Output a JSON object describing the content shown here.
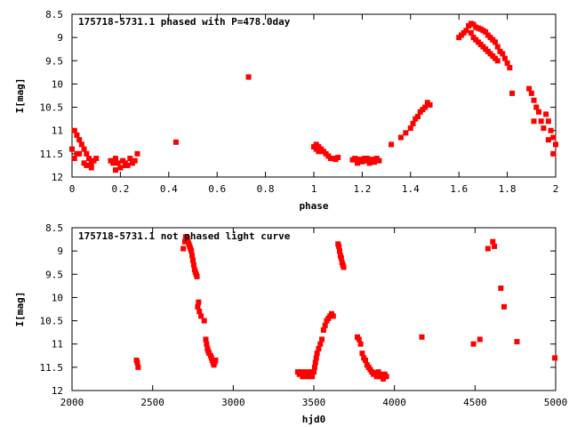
{
  "chart_data": [
    {
      "type": "scatter",
      "title": "175718-5731.1 phased with P=478.0day",
      "xlabel": "phase",
      "ylabel": "I[mag]",
      "xlim": [
        0,
        2
      ],
      "ylim": [
        8.5,
        12
      ],
      "y_inverted": true,
      "xticks": [
        "0",
        "0.2",
        "0.4",
        "0.6",
        "0.8",
        "1",
        "1.2",
        "1.4",
        "1.6",
        "1.8",
        "2"
      ],
      "yticks": [
        "8.5",
        "9",
        "9.5",
        "10",
        "10.5",
        "11",
        "11.5",
        "12"
      ],
      "color": "#ff0000",
      "series": [
        {
          "x": [
            0.0,
            0.01,
            0.01,
            0.02,
            0.02,
            0.03,
            0.04,
            0.05,
            0.06,
            0.07,
            0.08,
            0.09,
            0.1,
            0.03,
            0.05,
            0.06,
            0.08,
            0.16,
            0.17,
            0.18,
            0.19,
            0.2,
            0.21,
            0.22,
            0.23,
            0.24,
            0.25,
            0.26,
            0.27,
            0.18,
            0.22,
            0.43,
            0.73,
            1.0,
            1.01,
            1.01,
            1.02,
            1.02,
            1.03,
            1.04,
            1.05,
            1.06,
            1.07,
            1.08,
            1.09,
            1.1,
            1.16,
            1.17,
            1.18,
            1.19,
            1.2,
            1.21,
            1.22,
            1.23,
            1.24,
            1.25,
            1.26,
            1.27,
            1.18,
            1.22,
            1.32,
            1.36,
            1.38,
            1.4,
            1.41,
            1.42,
            1.43,
            1.44,
            1.45,
            1.46,
            1.47,
            1.48,
            1.6,
            1.61,
            1.62,
            1.63,
            1.64,
            1.65,
            1.66,
            1.67,
            1.68,
            1.69,
            1.7,
            1.71,
            1.72,
            1.73,
            1.74,
            1.75,
            1.76,
            1.77,
            1.78,
            1.79,
            1.8,
            1.81,
            1.65,
            1.66,
            1.67,
            1.68,
            1.69,
            1.7,
            1.71,
            1.72,
            1.73,
            1.74,
            1.75,
            1.76,
            1.82,
            1.89,
            1.9,
            1.91,
            1.92,
            1.93,
            1.94,
            1.95,
            1.96,
            1.97,
            1.98,
            1.99,
            2.0,
            1.91,
            1.97,
            1.99
          ],
          "y": [
            11.4,
            11.6,
            11.0,
            11.5,
            11.1,
            11.2,
            11.3,
            11.4,
            11.5,
            11.6,
            11.7,
            11.65,
            11.6,
            11.5,
            11.7,
            11.75,
            11.8,
            11.65,
            11.7,
            11.6,
            11.7,
            11.8,
            11.65,
            11.7,
            11.75,
            11.6,
            11.7,
            11.65,
            11.5,
            11.85,
            11.75,
            11.25,
            9.85,
            11.35,
            11.3,
            11.4,
            11.35,
            11.45,
            11.4,
            11.45,
            11.5,
            11.55,
            11.6,
            11.6,
            11.62,
            11.58,
            11.63,
            11.6,
            11.65,
            11.62,
            11.67,
            11.6,
            11.65,
            11.7,
            11.62,
            11.68,
            11.6,
            11.65,
            11.7,
            11.6,
            11.3,
            11.15,
            11.05,
            10.95,
            10.85,
            10.75,
            10.7,
            10.6,
            10.55,
            10.5,
            10.4,
            10.45,
            9.0,
            8.95,
            8.9,
            8.85,
            8.75,
            8.7,
            8.72,
            8.78,
            8.8,
            8.82,
            8.85,
            8.88,
            8.95,
            9.0,
            9.05,
            9.1,
            9.2,
            9.3,
            9.35,
            9.45,
            9.55,
            9.65,
            8.9,
            9.0,
            9.05,
            9.1,
            9.15,
            9.2,
            9.25,
            9.3,
            9.35,
            9.4,
            9.45,
            9.5,
            10.2,
            10.1,
            10.2,
            10.35,
            10.5,
            10.6,
            10.8,
            10.95,
            10.65,
            10.8,
            11.0,
            11.15,
            11.3,
            10.8,
            11.2,
            11.5
          ]
        }
      ]
    },
    {
      "type": "scatter",
      "title": "175718-5731.1 not phased light curve",
      "xlabel": "hjd0",
      "ylabel": "I[mag]",
      "xlim": [
        2000,
        5000
      ],
      "ylim": [
        8.5,
        12
      ],
      "y_inverted": true,
      "xticks": [
        "2000",
        "2500",
        "3000",
        "3500",
        "4000",
        "4500",
        "5000"
      ],
      "yticks": [
        "8.5",
        "9",
        "9.5",
        "10",
        "10.5",
        "11",
        "11.5",
        "12"
      ],
      "color": "#ff0000",
      "series": [
        {
          "x": [
            2400,
            2405,
            2410,
            2690,
            2700,
            2705,
            2710,
            2715,
            2720,
            2725,
            2730,
            2735,
            2740,
            2745,
            2750,
            2755,
            2760,
            2765,
            2770,
            2775,
            2780,
            2785,
            2790,
            2800,
            2820,
            2830,
            2835,
            2840,
            2845,
            2850,
            2860,
            2865,
            2870,
            2875,
            2880,
            2885,
            2890,
            3400,
            3410,
            3420,
            3430,
            3440,
            3450,
            3460,
            3470,
            3480,
            3490,
            3500,
            3505,
            3510,
            3515,
            3520,
            3530,
            3540,
            3550,
            3560,
            3570,
            3580,
            3590,
            3600,
            3610,
            3620,
            3650,
            3655,
            3660,
            3665,
            3670,
            3675,
            3680,
            3685,
            3770,
            3780,
            3790,
            3800,
            3810,
            3820,
            3830,
            3840,
            3850,
            3860,
            3870,
            3880,
            3890,
            3900,
            3910,
            3920,
            3930,
            3940,
            3950,
            4170,
            4490,
            4530,
            4580,
            4610,
            4620,
            4660,
            4680,
            4760,
            4995
          ],
          "y": [
            11.35,
            11.4,
            11.5,
            8.95,
            8.8,
            8.7,
            8.72,
            8.75,
            8.8,
            8.85,
            8.9,
            8.95,
            9.0,
            9.1,
            9.2,
            9.3,
            9.4,
            9.45,
            9.5,
            9.55,
            10.2,
            10.1,
            10.3,
            10.4,
            10.5,
            10.9,
            11.0,
            11.1,
            11.15,
            11.2,
            11.25,
            11.3,
            11.35,
            11.4,
            11.45,
            11.4,
            11.35,
            11.6,
            11.65,
            11.6,
            11.7,
            11.65,
            11.6,
            11.7,
            11.65,
            11.6,
            11.7,
            11.6,
            11.5,
            11.4,
            11.3,
            11.2,
            11.1,
            11.0,
            10.9,
            10.7,
            10.6,
            10.5,
            10.45,
            10.4,
            10.35,
            10.4,
            8.85,
            8.9,
            9.0,
            9.1,
            9.15,
            9.25,
            9.3,
            9.35,
            10.85,
            10.9,
            11.0,
            11.2,
            11.3,
            11.35,
            11.45,
            11.5,
            11.55,
            11.6,
            11.65,
            11.62,
            11.7,
            11.6,
            11.65,
            11.7,
            11.75,
            11.65,
            11.7,
            10.85,
            11.0,
            10.9,
            8.95,
            8.8,
            8.9,
            9.8,
            10.2,
            10.95,
            11.3
          ]
        }
      ]
    }
  ]
}
